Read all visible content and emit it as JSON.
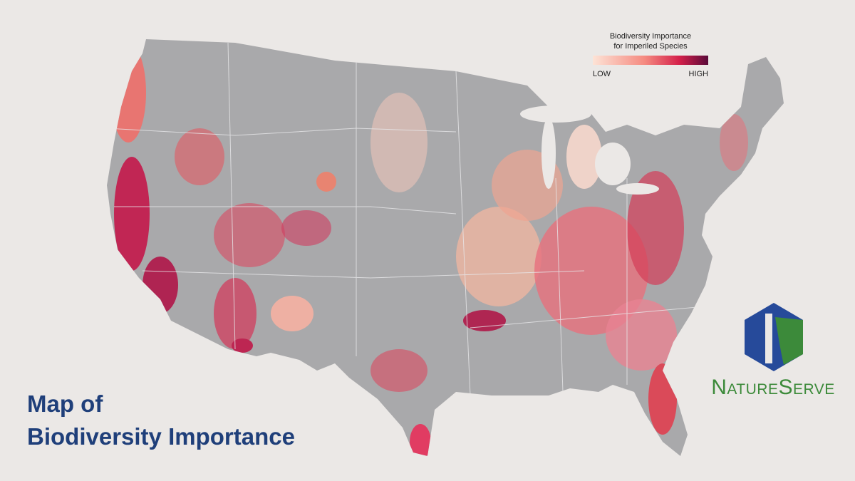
{
  "title": {
    "line1": "Map of",
    "line2": "Biodiversity Importance"
  },
  "legend": {
    "title_line1": "Biodiversity Importance",
    "title_line2": "for Imperiled Species",
    "low": "LOW",
    "high": "HIGH"
  },
  "logo": {
    "text": "NatureServe"
  }
}
